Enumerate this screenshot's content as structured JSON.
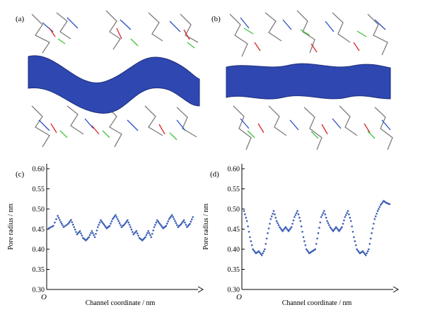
{
  "panels": {
    "a": {
      "label": "(a)"
    },
    "b": {
      "label": "(b)"
    },
    "c": {
      "label": "(c)"
    },
    "d": {
      "label": "(d)"
    }
  },
  "chart_data": [
    {
      "id": "c",
      "type": "scatter",
      "xlabel": "Channel coordinate / nm",
      "ylabel": "Pore radius / nm",
      "origin_label": "O",
      "yticks": [
        "0.30",
        "0.35",
        "0.40",
        "0.45",
        "0.50",
        "0.55",
        "0.60"
      ],
      "ylim": [
        0.3,
        0.6
      ],
      "xlim": [
        0,
        1
      ],
      "series": [
        {
          "color": "#3b5fb5",
          "points": [
            [
              0.0,
              0.452
            ],
            [
              0.03,
              0.458
            ],
            [
              0.06,
              0.483
            ],
            [
              0.08,
              0.468
            ],
            [
              0.1,
              0.455
            ],
            [
              0.13,
              0.463
            ],
            [
              0.15,
              0.473
            ],
            [
              0.17,
              0.455
            ],
            [
              0.19,
              0.437
            ],
            [
              0.21,
              0.445
            ],
            [
              0.23,
              0.428
            ],
            [
              0.25,
              0.422
            ],
            [
              0.27,
              0.43
            ],
            [
              0.29,
              0.445
            ],
            [
              0.31,
              0.43
            ],
            [
              0.33,
              0.455
            ],
            [
              0.35,
              0.472
            ],
            [
              0.37,
              0.462
            ],
            [
              0.39,
              0.452
            ],
            [
              0.41,
              0.458
            ],
            [
              0.43,
              0.475
            ],
            [
              0.45,
              0.485
            ],
            [
              0.47,
              0.47
            ],
            [
              0.49,
              0.455
            ],
            [
              0.51,
              0.462
            ],
            [
              0.53,
              0.472
            ],
            [
              0.55,
              0.455
            ],
            [
              0.57,
              0.437
            ],
            [
              0.59,
              0.445
            ],
            [
              0.61,
              0.428
            ],
            [
              0.63,
              0.422
            ],
            [
              0.65,
              0.43
            ],
            [
              0.67,
              0.445
            ],
            [
              0.69,
              0.43
            ],
            [
              0.71,
              0.455
            ],
            [
              0.73,
              0.472
            ],
            [
              0.75,
              0.462
            ],
            [
              0.77,
              0.452
            ],
            [
              0.79,
              0.458
            ],
            [
              0.81,
              0.475
            ],
            [
              0.83,
              0.485
            ],
            [
              0.85,
              0.47
            ],
            [
              0.87,
              0.455
            ],
            [
              0.89,
              0.462
            ],
            [
              0.91,
              0.472
            ],
            [
              0.93,
              0.455
            ],
            [
              0.95,
              0.463
            ],
            [
              0.97,
              0.48
            ]
          ]
        }
      ]
    },
    {
      "id": "d",
      "type": "scatter",
      "xlabel": "Channel coordinate / nm",
      "ylabel": "Pore radius / nm",
      "origin_label": "O",
      "yticks": [
        "0.30",
        "0.35",
        "0.40",
        "0.45",
        "0.50",
        "0.55",
        "0.60"
      ],
      "ylim": [
        0.3,
        0.6
      ],
      "xlim": [
        0,
        1
      ],
      "series": [
        {
          "color": "#3b5fb5",
          "points": [
            [
              0.0,
              0.495
            ],
            [
              0.02,
              0.47
            ],
            [
              0.04,
              0.43
            ],
            [
              0.06,
              0.4
            ],
            [
              0.08,
              0.39
            ],
            [
              0.1,
              0.395
            ],
            [
              0.12,
              0.385
            ],
            [
              0.14,
              0.4
            ],
            [
              0.16,
              0.44
            ],
            [
              0.18,
              0.475
            ],
            [
              0.2,
              0.495
            ],
            [
              0.22,
              0.47
            ],
            [
              0.24,
              0.455
            ],
            [
              0.26,
              0.445
            ],
            [
              0.28,
              0.455
            ],
            [
              0.3,
              0.445
            ],
            [
              0.32,
              0.455
            ],
            [
              0.34,
              0.48
            ],
            [
              0.36,
              0.495
            ],
            [
              0.38,
              0.47
            ],
            [
              0.4,
              0.43
            ],
            [
              0.42,
              0.4
            ],
            [
              0.44,
              0.39
            ],
            [
              0.46,
              0.395
            ],
            [
              0.48,
              0.4
            ],
            [
              0.5,
              0.44
            ],
            [
              0.52,
              0.48
            ],
            [
              0.54,
              0.495
            ],
            [
              0.56,
              0.47
            ],
            [
              0.58,
              0.455
            ],
            [
              0.6,
              0.445
            ],
            [
              0.62,
              0.455
            ],
            [
              0.64,
              0.445
            ],
            [
              0.66,
              0.455
            ],
            [
              0.68,
              0.48
            ],
            [
              0.7,
              0.495
            ],
            [
              0.72,
              0.47
            ],
            [
              0.74,
              0.43
            ],
            [
              0.76,
              0.4
            ],
            [
              0.78,
              0.39
            ],
            [
              0.8,
              0.395
            ],
            [
              0.82,
              0.385
            ],
            [
              0.84,
              0.4
            ],
            [
              0.86,
              0.44
            ],
            [
              0.88,
              0.475
            ],
            [
              0.9,
              0.495
            ],
            [
              0.92,
              0.51
            ],
            [
              0.94,
              0.52
            ],
            [
              0.96,
              0.515
            ],
            [
              0.98,
              0.512
            ]
          ]
        }
      ]
    }
  ]
}
